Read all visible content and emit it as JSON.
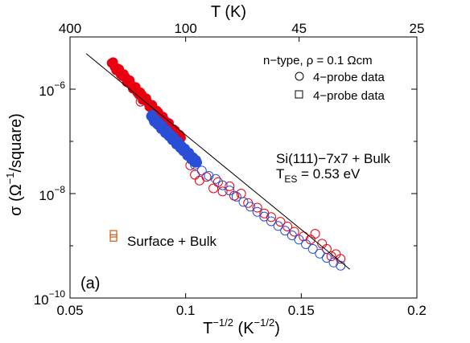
{
  "chart_data": {
    "type": "scatter",
    "panel_label": "(a)",
    "xlabel_base": "T",
    "xlabel_exp": "−1/2",
    "xlabel_unit_open": " (K",
    "xlabel_unit_exp": "−1/2",
    "xlabel_unit_close": ")",
    "ylabel_sym": "σ (Ω",
    "ylabel_exp": "−1",
    "ylabel_rest": "/square)",
    "top_axis_label": "T (K)",
    "xlim": [
      0.05,
      0.2
    ],
    "ylim_log10": [
      -10,
      -5
    ],
    "yscale": "log",
    "x_ticks": [
      0.05,
      0.1,
      0.15,
      0.2
    ],
    "x_tick_labels": [
      "0.05",
      "0.1",
      "0.15",
      "0.2"
    ],
    "y_ticks_log10": [
      -10,
      -8,
      -6
    ],
    "y_tick_base": "10",
    "y_tick_exps": [
      "−10",
      "−8",
      "−6"
    ],
    "top_ticks_K": [
      400,
      100,
      45,
      25
    ],
    "top_tick_labels": [
      "400",
      "100",
      "45",
      "25"
    ],
    "legend": {
      "title": "n−type, ρ = 0.1 Ωcm",
      "entries": [
        {
          "marker": "circle",
          "label": "4−probe data"
        },
        {
          "marker": "square",
          "label": "4−probe data"
        }
      ]
    },
    "annotations": {
      "bulk_line1": "Si(111)−7x7 + Bulk",
      "bulk_line2_base": "T",
      "bulk_line2_sub": "ES",
      "bulk_line2_rest": " = 0.53 eV",
      "surface": "Surface + Bulk"
    },
    "fit_line": {
      "x": [
        0.057,
        0.171
      ],
      "log10_y": [
        -5.32,
        -9.45
      ],
      "color": "#000000"
    },
    "series": [
      {
        "marker": "circle",
        "color": "#e8000f",
        "filled_segment": {
          "x_start": 0.068,
          "x_end": 0.098,
          "log10_start": -5.5,
          "log10_end": -6.95
        },
        "open_points": [
          [
            0.0805,
            -6.24
          ],
          [
            0.0812,
            -6.2
          ],
          [
            0.102,
            -7.46
          ],
          [
            0.104,
            -7.64
          ],
          [
            0.106,
            -7.75
          ],
          [
            0.109,
            -7.68
          ],
          [
            0.112,
            -7.9
          ],
          [
            0.114,
            -7.78
          ],
          [
            0.116,
            -7.96
          ],
          [
            0.119,
            -7.86
          ],
          [
            0.121,
            -8.04
          ],
          [
            0.124,
            -8.0
          ],
          [
            0.127,
            -8.18
          ],
          [
            0.131,
            -8.27
          ],
          [
            0.134,
            -8.38
          ],
          [
            0.137,
            -8.45
          ],
          [
            0.141,
            -8.54
          ],
          [
            0.144,
            -8.63
          ],
          [
            0.147,
            -8.73
          ],
          [
            0.151,
            -8.82
          ],
          [
            0.154,
            -8.88
          ],
          [
            0.156,
            -8.77
          ],
          [
            0.159,
            -8.96
          ],
          [
            0.161,
            -9.06
          ],
          [
            0.163,
            -9.2
          ],
          [
            0.165,
            -9.16
          ],
          [
            0.167,
            -9.25
          ]
        ]
      },
      {
        "marker": "circle",
        "color": "#2a4fd6",
        "filled_segment": {
          "x_start": 0.085,
          "x_end": 0.105,
          "log10_start": -6.52,
          "log10_end": -7.42
        },
        "open_points": [
          [
            0.104,
            -7.45
          ],
          [
            0.107,
            -7.56
          ],
          [
            0.11,
            -7.66
          ],
          [
            0.113,
            -7.72
          ],
          [
            0.116,
            -7.84
          ],
          [
            0.119,
            -7.94
          ],
          [
            0.122,
            -8.06
          ],
          [
            0.125,
            -8.16
          ],
          [
            0.128,
            -8.25
          ],
          [
            0.131,
            -8.35
          ],
          [
            0.134,
            -8.44
          ],
          [
            0.137,
            -8.53
          ],
          [
            0.14,
            -8.62
          ],
          [
            0.143,
            -8.71
          ],
          [
            0.146,
            -8.8
          ],
          [
            0.149,
            -8.88
          ],
          [
            0.152,
            -8.97
          ],
          [
            0.155,
            -9.06
          ],
          [
            0.158,
            -9.15
          ],
          [
            0.161,
            -9.23
          ],
          [
            0.164,
            -9.32
          ],
          [
            0.167,
            -9.38
          ]
        ]
      },
      {
        "marker": "square",
        "color": "#d2661f",
        "points": [
          [
            0.0688,
            -8.77
          ],
          [
            0.0688,
            -8.85
          ]
        ]
      }
    ]
  }
}
